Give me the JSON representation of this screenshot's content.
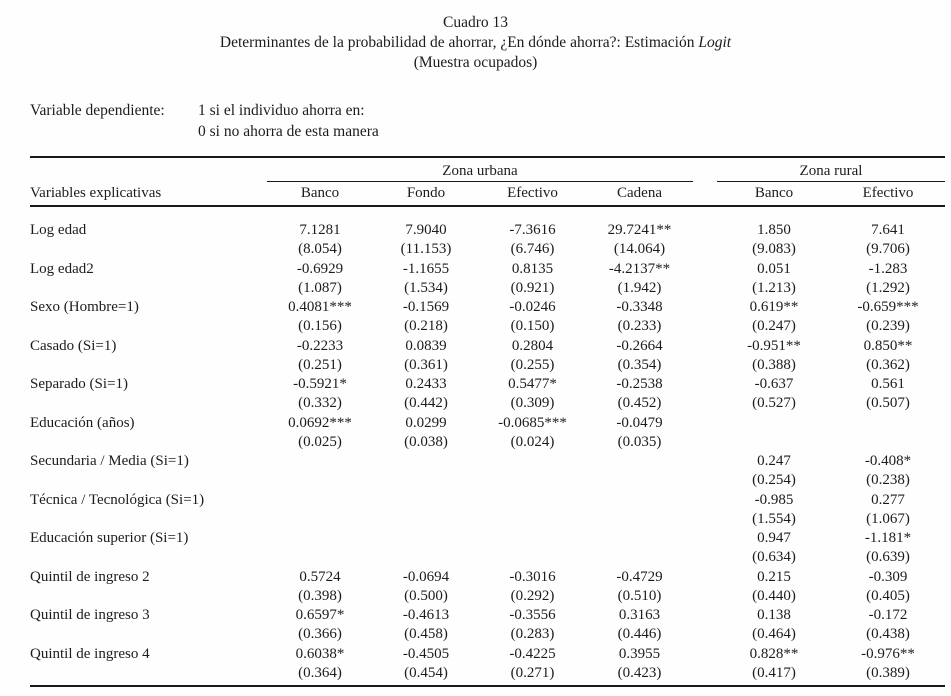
{
  "title": {
    "line1": "Cuadro 13",
    "line2_pre": "Determinantes de la probabilidad de ahorrar, ¿En dónde ahorra?: Estimación ",
    "line2_italic": "Logit",
    "line3": "(Muestra ocupados)"
  },
  "dependent_variable": {
    "label": "Variable dependiente:",
    "line1": "1 si el individuo ahorra en:",
    "line2": "0 si no ahorra de esta manera"
  },
  "table": {
    "col_header_label": "Variables explicativas",
    "groups": [
      {
        "label": "Zona urbana",
        "cols": [
          "Banco",
          "Fondo",
          "Efectivo",
          "Cadena"
        ]
      },
      {
        "label": "Zona rural",
        "cols": [
          "Banco",
          "Efectivo"
        ]
      }
    ],
    "rows": [
      {
        "label": "Log edad",
        "coef": [
          "7.1281",
          "7.9040",
          "-7.3616",
          "29.7241**",
          "1.850",
          "7.641"
        ],
        "se": [
          "(8.054)",
          "(11.153)",
          "(6.746)",
          "(14.064)",
          "(9.083)",
          "(9.706)"
        ]
      },
      {
        "label": "Log edad2",
        "coef": [
          "-0.6929",
          "-1.1655",
          "0.8135",
          "-4.2137**",
          "0.051",
          "-1.283"
        ],
        "se": [
          "(1.087)",
          "(1.534)",
          "(0.921)",
          "(1.942)",
          "(1.213)",
          "(1.292)"
        ]
      },
      {
        "label": "Sexo (Hombre=1)",
        "coef": [
          "0.4081***",
          "-0.1569",
          "-0.0246",
          "-0.3348",
          "0.619**",
          "-0.659***"
        ],
        "se": [
          "(0.156)",
          "(0.218)",
          "(0.150)",
          "(0.233)",
          "(0.247)",
          "(0.239)"
        ]
      },
      {
        "label": "Casado (Si=1)",
        "coef": [
          "-0.2233",
          "0.0839",
          "0.2804",
          "-0.2664",
          "-0.951**",
          "0.850**"
        ],
        "se": [
          "(0.251)",
          "(0.361)",
          "(0.255)",
          "(0.354)",
          "(0.388)",
          "(0.362)"
        ]
      },
      {
        "label": "Separado (Si=1)",
        "coef": [
          "-0.5921*",
          "0.2433",
          "0.5477*",
          "-0.2538",
          "-0.637",
          "0.561"
        ],
        "se": [
          "(0.332)",
          "(0.442)",
          "(0.309)",
          "(0.452)",
          "(0.527)",
          "(0.507)"
        ]
      },
      {
        "label": "Educación (años)",
        "coef": [
          "0.0692***",
          "0.0299",
          "-0.0685***",
          "-0.0479",
          "",
          ""
        ],
        "se": [
          "(0.025)",
          "(0.038)",
          "(0.024)",
          "(0.035)",
          "",
          ""
        ]
      },
      {
        "label": "Secundaria / Media (Si=1)",
        "coef": [
          "",
          "",
          "",
          "",
          "0.247",
          "-0.408*"
        ],
        "se": [
          "",
          "",
          "",
          "",
          "(0.254)",
          "(0.238)"
        ]
      },
      {
        "label": "Técnica / Tecnológica (Si=1)",
        "coef": [
          "",
          "",
          "",
          "",
          "-0.985",
          "0.277"
        ],
        "se": [
          "",
          "",
          "",
          "",
          "(1.554)",
          "(1.067)"
        ]
      },
      {
        "label": "Educación superior (Si=1)",
        "coef": [
          "",
          "",
          "",
          "",
          "0.947",
          "-1.181*"
        ],
        "se": [
          "",
          "",
          "",
          "",
          "(0.634)",
          "(0.639)"
        ]
      },
      {
        "label": "Quintil de ingreso 2",
        "coef": [
          "0.5724",
          "-0.0694",
          "-0.3016",
          "-0.4729",
          "0.215",
          "-0.309"
        ],
        "se": [
          "(0.398)",
          "(0.500)",
          "(0.292)",
          "(0.510)",
          "(0.440)",
          "(0.405)"
        ]
      },
      {
        "label": "Quintil de ingreso 3",
        "coef": [
          "0.6597*",
          "-0.4613",
          "-0.3556",
          "0.3163",
          "0.138",
          "-0.172"
        ],
        "se": [
          "(0.366)",
          "(0.458)",
          "(0.283)",
          "(0.446)",
          "(0.464)",
          "(0.438)"
        ]
      },
      {
        "label": "Quintil de ingreso 4",
        "coef": [
          "0.6038*",
          "-0.4505",
          "-0.4225",
          "0.3955",
          "0.828**",
          "-0.976**"
        ],
        "se": [
          "(0.364)",
          "(0.454)",
          "(0.271)",
          "(0.423)",
          "(0.417)",
          "(0.389)"
        ]
      }
    ]
  }
}
